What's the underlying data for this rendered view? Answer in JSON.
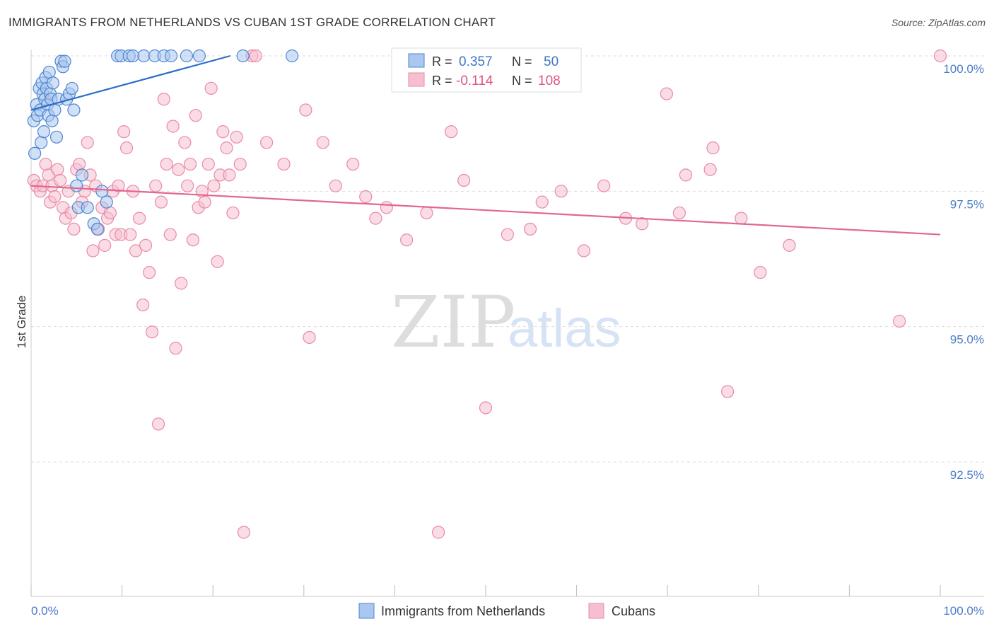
{
  "title": "IMMIGRANTS FROM NETHERLANDS VS CUBAN 1ST GRADE CORRELATION CHART",
  "source": "Source: ZipAtlas.com",
  "watermark": {
    "zip": "ZIP",
    "atlas": "atlas"
  },
  "legend_box": {
    "rows": [
      {
        "r_label": "R =",
        "r_value": "0.357",
        "n_label": "N =",
        "n_value": "50"
      },
      {
        "r_label": "R =",
        "r_value": "-0.114",
        "n_label": "N =",
        "n_value": "108"
      }
    ]
  },
  "colors": {
    "blue_fill": "#a9c7ef",
    "blue_stroke": "#4f86d0",
    "blue_line": "#2d6ec9",
    "pink_fill": "#f6bfd0",
    "pink_stroke": "#e98aa8",
    "pink_line": "#e26790",
    "grid": "#dddddd",
    "tick_text": "#4a7bc8"
  },
  "chart_data": {
    "type": "scatter",
    "title": "IMMIGRANTS FROM NETHERLANDS VS CUBAN 1ST GRADE CORRELATION CHART",
    "xlabel": "",
    "ylabel": "1st Grade",
    "xlim": [
      0,
      100
    ],
    "ylim": [
      90.0,
      100.3
    ],
    "x_tick_labels": [
      "0.0%",
      "100.0%"
    ],
    "y_ticks": [
      100.0,
      97.5,
      95.0,
      92.5
    ],
    "y_tick_labels": [
      "100.0%",
      "97.5%",
      "95.0%",
      "92.5%"
    ],
    "grid": true,
    "legend_position": "bottom-center",
    "series": [
      {
        "name": "Immigrants from Netherlands",
        "color": "#a9c7ef",
        "r": 0.357,
        "n": 50,
        "trend": {
          "x": [
            0.0,
            21.9
          ],
          "y": [
            99.0,
            100.0
          ]
        },
        "points": [
          [
            0.3,
            98.8
          ],
          [
            0.4,
            98.2
          ],
          [
            0.6,
            99.1
          ],
          [
            0.7,
            98.9
          ],
          [
            0.9,
            99.4
          ],
          [
            1.0,
            99.0
          ],
          [
            1.1,
            98.4
          ],
          [
            1.2,
            99.5
          ],
          [
            1.3,
            99.3
          ],
          [
            1.4,
            98.6
          ],
          [
            1.5,
            99.2
          ],
          [
            1.6,
            99.6
          ],
          [
            1.7,
            99.4
          ],
          [
            1.8,
            99.1
          ],
          [
            1.9,
            98.9
          ],
          [
            2.0,
            99.7
          ],
          [
            2.1,
            99.3
          ],
          [
            2.2,
            99.2
          ],
          [
            2.3,
            98.8
          ],
          [
            2.4,
            99.5
          ],
          [
            2.6,
            99.0
          ],
          [
            2.8,
            98.5
          ],
          [
            3.0,
            99.2
          ],
          [
            3.3,
            99.9
          ],
          [
            3.5,
            99.8
          ],
          [
            3.7,
            99.9
          ],
          [
            3.9,
            99.2
          ],
          [
            4.2,
            99.3
          ],
          [
            4.5,
            99.4
          ],
          [
            4.7,
            99.0
          ],
          [
            5.0,
            97.6
          ],
          [
            5.2,
            97.2
          ],
          [
            5.6,
            97.8
          ],
          [
            6.2,
            97.2
          ],
          [
            6.9,
            96.9
          ],
          [
            7.3,
            96.8
          ],
          [
            7.8,
            97.5
          ],
          [
            8.3,
            97.3
          ],
          [
            9.5,
            100.0
          ],
          [
            9.9,
            100.0
          ],
          [
            10.8,
            100.0
          ],
          [
            11.2,
            100.0
          ],
          [
            12.4,
            100.0
          ],
          [
            13.6,
            100.0
          ],
          [
            14.6,
            100.0
          ],
          [
            15.4,
            100.0
          ],
          [
            17.1,
            100.0
          ],
          [
            18.5,
            100.0
          ],
          [
            23.3,
            100.0
          ],
          [
            28.7,
            100.0
          ]
        ]
      },
      {
        "name": "Cubans",
        "color": "#f6bfd0",
        "r": -0.114,
        "n": 108,
        "trend": {
          "x": [
            0.0,
            100.0
          ],
          "y": [
            97.6,
            96.7
          ]
        },
        "points": [
          [
            0.3,
            97.7
          ],
          [
            0.6,
            97.6
          ],
          [
            1.0,
            97.5
          ],
          [
            1.3,
            97.6
          ],
          [
            1.6,
            98.0
          ],
          [
            1.9,
            97.8
          ],
          [
            2.1,
            97.3
          ],
          [
            2.3,
            97.6
          ],
          [
            2.6,
            97.4
          ],
          [
            2.9,
            97.9
          ],
          [
            3.2,
            97.7
          ],
          [
            3.5,
            97.2
          ],
          [
            3.8,
            97.0
          ],
          [
            4.1,
            97.5
          ],
          [
            4.4,
            97.1
          ],
          [
            4.7,
            96.8
          ],
          [
            5.0,
            97.9
          ],
          [
            5.3,
            98.0
          ],
          [
            5.6,
            97.3
          ],
          [
            5.9,
            97.5
          ],
          [
            6.2,
            98.4
          ],
          [
            6.5,
            97.8
          ],
          [
            6.8,
            96.4
          ],
          [
            7.1,
            97.6
          ],
          [
            7.4,
            96.8
          ],
          [
            7.8,
            97.2
          ],
          [
            8.1,
            96.5
          ],
          [
            8.4,
            97.0
          ],
          [
            8.7,
            97.1
          ],
          [
            9.0,
            97.5
          ],
          [
            9.3,
            96.7
          ],
          [
            9.6,
            97.6
          ],
          [
            9.9,
            96.7
          ],
          [
            10.2,
            98.6
          ],
          [
            10.5,
            98.3
          ],
          [
            10.9,
            96.7
          ],
          [
            11.2,
            97.5
          ],
          [
            11.5,
            96.4
          ],
          [
            11.9,
            97.0
          ],
          [
            12.3,
            95.4
          ],
          [
            12.6,
            96.5
          ],
          [
            13.0,
            96.0
          ],
          [
            13.3,
            94.9
          ],
          [
            13.7,
            97.6
          ],
          [
            14.0,
            93.2
          ],
          [
            14.3,
            97.3
          ],
          [
            14.6,
            99.2
          ],
          [
            14.9,
            98.0
          ],
          [
            15.3,
            96.7
          ],
          [
            15.6,
            98.7
          ],
          [
            15.9,
            94.6
          ],
          [
            16.2,
            97.9
          ],
          [
            16.5,
            95.8
          ],
          [
            16.9,
            98.4
          ],
          [
            17.2,
            97.6
          ],
          [
            17.5,
            98.0
          ],
          [
            17.8,
            96.6
          ],
          [
            18.1,
            98.9
          ],
          [
            18.4,
            97.2
          ],
          [
            18.8,
            97.5
          ],
          [
            19.1,
            97.3
          ],
          [
            19.5,
            98.0
          ],
          [
            19.8,
            99.4
          ],
          [
            20.1,
            97.6
          ],
          [
            20.5,
            96.2
          ],
          [
            20.8,
            97.8
          ],
          [
            21.1,
            98.6
          ],
          [
            21.5,
            98.3
          ],
          [
            21.8,
            97.8
          ],
          [
            22.2,
            97.1
          ],
          [
            22.6,
            98.5
          ],
          [
            23.0,
            98.0
          ],
          [
            23.4,
            91.2
          ],
          [
            24.3,
            100.0
          ],
          [
            24.7,
            100.0
          ],
          [
            25.9,
            98.4
          ],
          [
            27.8,
            98.0
          ],
          [
            30.2,
            99.0
          ],
          [
            30.6,
            94.8
          ],
          [
            32.1,
            98.4
          ],
          [
            33.5,
            97.6
          ],
          [
            35.4,
            98.0
          ],
          [
            36.8,
            97.4
          ],
          [
            37.9,
            97.0
          ],
          [
            39.1,
            97.2
          ],
          [
            41.3,
            96.6
          ],
          [
            43.5,
            97.1
          ],
          [
            44.8,
            91.2
          ],
          [
            46.2,
            98.6
          ],
          [
            47.6,
            97.7
          ],
          [
            50.0,
            93.5
          ],
          [
            52.4,
            96.7
          ],
          [
            54.9,
            96.8
          ],
          [
            56.2,
            97.3
          ],
          [
            58.3,
            97.5
          ],
          [
            60.8,
            96.4
          ],
          [
            63.0,
            97.6
          ],
          [
            65.4,
            97.0
          ],
          [
            67.2,
            96.9
          ],
          [
            69.9,
            99.3
          ],
          [
            71.3,
            97.1
          ],
          [
            72.0,
            97.8
          ],
          [
            74.7,
            97.9
          ],
          [
            75.0,
            98.3
          ],
          [
            76.6,
            93.8
          ],
          [
            78.1,
            97.0
          ],
          [
            80.2,
            96.0
          ],
          [
            83.4,
            96.5
          ],
          [
            95.5,
            95.1
          ],
          [
            100.0,
            100.0
          ]
        ]
      }
    ]
  }
}
